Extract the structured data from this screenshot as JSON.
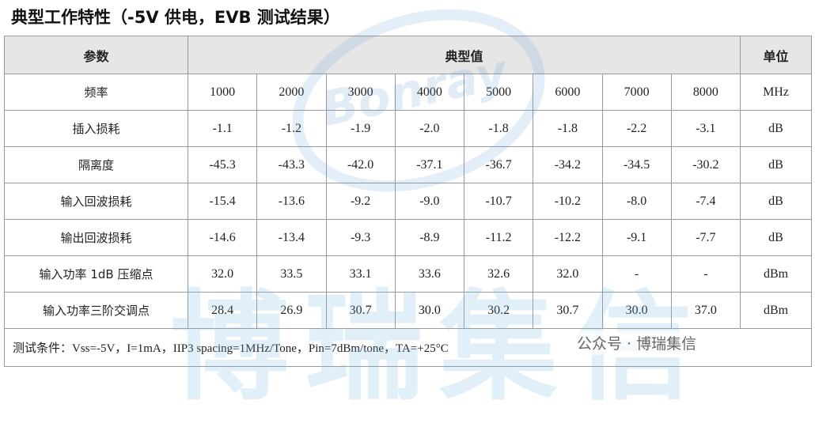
{
  "title": "典型工作特性（-5V 供电，EVB 测试结果）",
  "table": {
    "header": [
      "参数",
      "典型值",
      "单位"
    ],
    "rows": [
      {
        "label": "频率",
        "values": [
          "1000",
          "2000",
          "3000",
          "4000",
          "5000",
          "6000",
          "7000",
          "8000"
        ],
        "unit": "MHz"
      },
      {
        "label": "插入损耗",
        "values": [
          "-1.1",
          "-1.2",
          "-1.9",
          "-2.0",
          "-1.8",
          "-1.8",
          "-2.2",
          "-3.1"
        ],
        "unit": "dB"
      },
      {
        "label": "隔离度",
        "values": [
          "-45.3",
          "-43.3",
          "-42.0",
          "-37.1",
          "-36.7",
          "-34.2",
          "-34.5",
          "-30.2"
        ],
        "unit": "dB"
      },
      {
        "label": "输入回波损耗",
        "values": [
          "-15.4",
          "-13.6",
          "-9.2",
          "-9.0",
          "-10.7",
          "-10.2",
          "-8.0",
          "-7.4"
        ],
        "unit": "dB"
      },
      {
        "label": "输出回波损耗",
        "values": [
          "-14.6",
          "-13.4",
          "-9.3",
          "-8.9",
          "-11.2",
          "-12.2",
          "-9.1",
          "-7.7"
        ],
        "unit": "dB"
      },
      {
        "label": "输入功率 1dB 压缩点",
        "values": [
          "32.0",
          "33.5",
          "33.1",
          "33.6",
          "32.6",
          "32.0",
          "-",
          "-"
        ],
        "unit": "dBm"
      },
      {
        "label": "输入功率三阶交调点",
        "values": [
          "28.4",
          "26.9",
          "30.7",
          "30.0",
          "30.2",
          "30.7",
          "30.0",
          "37.0"
        ],
        "unit": "dBm"
      }
    ],
    "note": "测试条件：Vss=-5V，I=1mA，IIP3 spacing=1MHz/Tone，Pin=7dBm/tone，TA=+25°C"
  },
  "watermark": {
    "logo": "Bonray",
    "text": "博瑞集信",
    "account": "公众号 · 博瑞集信"
  }
}
